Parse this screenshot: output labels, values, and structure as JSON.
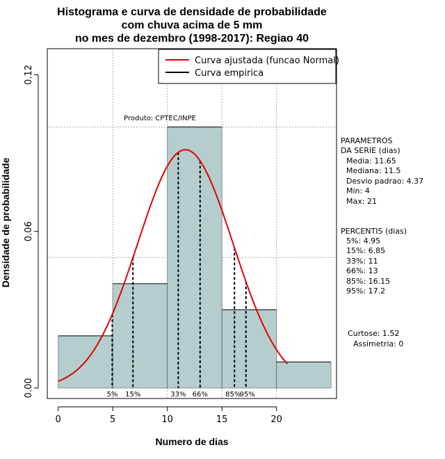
{
  "chart_data": {
    "type": "bar",
    "title_lines": [
      "Histograma e curva de densidade de probabilidade",
      "com chuva acima de 5 mm",
      "no mes de dezembro (1998-2017): Regiao 40"
    ],
    "xlabel": "Numero de dias",
    "ylabel": "Densidade de probabilidade",
    "xlim": [
      -1,
      25.5
    ],
    "ylim": [
      -0.004,
      0.13
    ],
    "x_ticks": [
      0,
      5,
      10,
      15,
      20
    ],
    "x_tick_labels": [
      "0",
      "5",
      "10",
      "15",
      "20"
    ],
    "y_ticks": [
      0.0,
      0.06,
      0.12
    ],
    "y_tick_labels": [
      "0.00",
      "0.06",
      "0.12"
    ],
    "bins": [
      {
        "start": 0,
        "end": 5,
        "density": 0.02
      },
      {
        "start": 5,
        "end": 10,
        "density": 0.04
      },
      {
        "start": 10,
        "end": 15,
        "density": 0.1
      },
      {
        "start": 15,
        "end": 20,
        "density": 0.03
      },
      {
        "start": 20,
        "end": 25,
        "density": 0.01
      }
    ],
    "normal_curve": {
      "mean": 11.65,
      "sd": 4.37,
      "x_start": 0,
      "x_end": 21
    },
    "grid_y": [
      0.05,
      0.1
    ],
    "grid_x": [
      5,
      10,
      15,
      20
    ],
    "percentiles": [
      {
        "label": "5%",
        "value": 4.95
      },
      {
        "label": "15%",
        "value": 6.85
      },
      {
        "label": "33%",
        "value": 11
      },
      {
        "label": "66%",
        "value": 13
      },
      {
        "label": "85%",
        "value": 16.15
      },
      {
        "label": "95%",
        "value": 17.2
      }
    ],
    "legend": [
      {
        "label": "Curva ajustada (funcao Normal)",
        "color": "#e00000"
      },
      {
        "label": "Curva empirica",
        "color": "#000000"
      }
    ],
    "source_note": "Produto: CPTEC/INPE",
    "params": {
      "header1": "PARAMETROS",
      "header2": "DA SERIE (dias)",
      "lines": [
        "Media: 11.65",
        "Mediana: 11.5",
        "Desvio padrao: 4.37",
        "Min: 4",
        "Max: 21"
      ]
    },
    "percentis_text": {
      "header": "PERCENTIS (dias)",
      "lines": [
        "5%: 4.95",
        "15%: 6.85",
        "33%: 11",
        "66%: 13",
        "85%: 16.15",
        "95%: 17.2"
      ]
    },
    "stats_text": {
      "curtose": "Curtose: 1.52",
      "assimetria": "Assimetria: 0"
    },
    "colors": {
      "bar": "#b5cdcd",
      "curve": "#e00000",
      "grid": "#a6a6a6"
    }
  }
}
